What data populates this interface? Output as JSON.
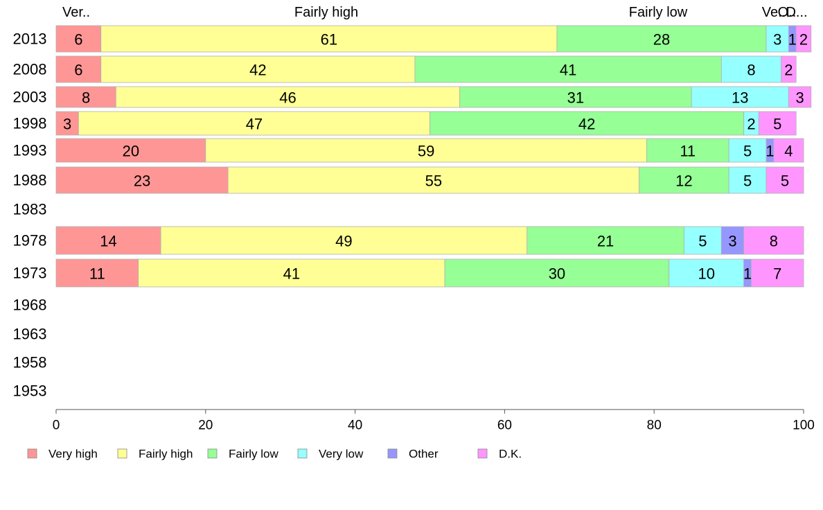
{
  "chart_data": {
    "type": "bar",
    "orientation": "horizontal",
    "stacked": true,
    "categories": [
      "2013",
      "2008",
      "2003",
      "1998",
      "1993",
      "1988",
      "1983",
      "1978",
      "1973",
      "1968",
      "1963",
      "1958",
      "1953"
    ],
    "series": [
      {
        "name": "Very high",
        "color": "#ff9696",
        "values": [
          6,
          6,
          8,
          3,
          20,
          23,
          null,
          14,
          11,
          null,
          null,
          null,
          null
        ],
        "labels": [
          "6",
          "6",
          "8",
          "3",
          "20",
          "23",
          "",
          "14",
          "11",
          "",
          "",
          "",
          ""
        ]
      },
      {
        "name": "Fairly high",
        "color": "#ffff96",
        "values": [
          61,
          42,
          46,
          47,
          59,
          55,
          null,
          49,
          41,
          null,
          null,
          null,
          null
        ],
        "labels": [
          "61",
          "42",
          "46",
          "47",
          "59",
          "55",
          "",
          "49",
          "41",
          "",
          "",
          "",
          ""
        ]
      },
      {
        "name": "Fairly low",
        "color": "#96ff96",
        "values": [
          28,
          41,
          31,
          42,
          11,
          12,
          null,
          21,
          30,
          null,
          null,
          null,
          null
        ],
        "labels": [
          "28",
          "41",
          "31",
          "42",
          "11",
          "12",
          "",
          "21",
          "30",
          "",
          "",
          "",
          ""
        ]
      },
      {
        "name": "Very low",
        "color": "#96ffff",
        "values": [
          3,
          8,
          13,
          2,
          5,
          5,
          null,
          5,
          10,
          null,
          null,
          null,
          null
        ],
        "labels": [
          "3",
          "8",
          "13",
          "2",
          "5",
          "5",
          "",
          "5",
          "10",
          "",
          "",
          "",
          ""
        ]
      },
      {
        "name": "Other",
        "color": "#9696ff",
        "values": [
          1,
          0,
          0,
          0,
          1,
          0,
          null,
          3,
          1,
          null,
          null,
          null,
          null
        ],
        "labels": [
          "1",
          "",
          "",
          "",
          "1",
          "",
          "",
          "3",
          "1",
          "",
          "",
          "",
          ""
        ]
      },
      {
        "name": "D.K.",
        "color": "#ff96ff",
        "values": [
          2,
          2,
          3,
          5,
          4,
          5,
          null,
          8,
          7,
          null,
          null,
          null,
          null
        ],
        "labels": [
          "2",
          "2",
          "3",
          "5",
          "4",
          "5",
          "",
          "8",
          "7",
          "",
          "",
          "",
          ""
        ]
      }
    ],
    "top_labels": [
      "Ver..",
      "Fairly high",
      "Fairly low",
      "Ve..",
      "O..",
      "D..."
    ],
    "xticks": [
      "0",
      "20",
      "40",
      "60",
      "80",
      "100"
    ],
    "xlim": [
      0,
      100
    ],
    "grid": false,
    "legend_position": "bottom",
    "title": "",
    "xlabel": "",
    "ylabel": ""
  }
}
